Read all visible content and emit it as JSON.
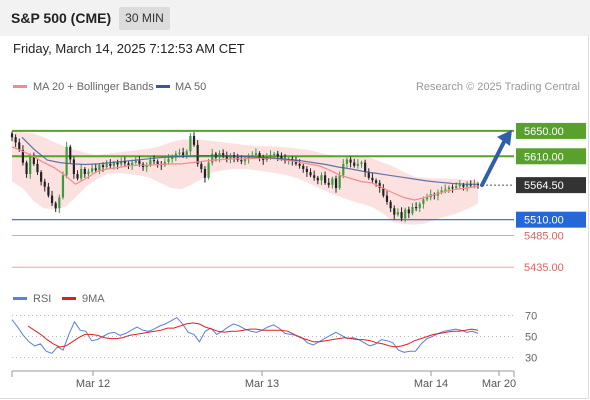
{
  "header": {
    "title": "S&P 500 (CME)",
    "timeframe": "30 MIN",
    "datetime": "Friday, March 14, 2025 7:12:53 AM CET"
  },
  "chart_data": [
    {
      "type": "candlestick",
      "title": "",
      "legend": [
        {
          "name": "MA 20 + Bollinger Bands",
          "color": "#f28b8b"
        },
        {
          "name": "MA 50",
          "color": "#3b5998"
        }
      ],
      "source": "Research © 2025 Trading Central",
      "x_ticks": [
        "Mar 12",
        "Mar 13",
        "Mar 14",
        "Mar 20"
      ],
      "ylim": [
        5418,
        5683
      ],
      "last_price": 5564.5,
      "levels": [
        {
          "label": "5650.00",
          "value": 5650,
          "type": "resistance",
          "color": "#5aa02c"
        },
        {
          "label": "5610.00",
          "value": 5610,
          "type": "resistance",
          "color": "#5aa02c"
        },
        {
          "label": "5564.50",
          "value": 5564.5,
          "type": "last",
          "color": "#333333"
        },
        {
          "label": "5510.00",
          "value": 5510,
          "type": "pivot",
          "color": "#2566d8"
        },
        {
          "label": "5485.00",
          "value": 5485,
          "type": "support",
          "color": "#e06060"
        },
        {
          "label": "5435.00",
          "value": 5435,
          "type": "support",
          "color": "#e06060"
        }
      ],
      "projection": {
        "from": 5564.5,
        "to": 5650
      },
      "closes": [
        5640,
        5632,
        5620,
        5600,
        5582,
        5610,
        5598,
        5585,
        5570,
        5562,
        5548,
        5536,
        5528,
        5545,
        5580,
        5625,
        5605,
        5582,
        5575,
        5590,
        5582,
        5586,
        5591,
        5588,
        5596,
        5593,
        5598,
        5595,
        5600,
        5597,
        5602,
        5599,
        5596,
        5600,
        5603,
        5598,
        5593,
        5596,
        5604,
        5602,
        5598,
        5596,
        5601,
        5606,
        5610,
        5614,
        5616,
        5612,
        5618,
        5642,
        5628,
        5598,
        5590,
        5576,
        5600,
        5614,
        5608,
        5615,
        5610,
        5605,
        5612,
        5608,
        5604,
        5602,
        5606,
        5610,
        5612,
        5615,
        5608,
        5604,
        5609,
        5612,
        5614,
        5610,
        5606,
        5603,
        5606,
        5603,
        5598,
        5595,
        5590,
        5585,
        5580,
        5576,
        5572,
        5580,
        5568,
        5565,
        5575,
        5560,
        5580,
        5598,
        5605,
        5600,
        5595,
        5598,
        5600,
        5585,
        5576,
        5572,
        5568,
        5560,
        5548,
        5538,
        5528,
        5518,
        5522,
        5512,
        5526,
        5520,
        5530,
        5528,
        5535,
        5542,
        5545,
        5550,
        5548,
        5553,
        5556,
        5558,
        5561,
        5560,
        5563,
        5565,
        5562,
        5566,
        5564,
        5566,
        5564.5
      ],
      "ma20": [
        5625,
        5618,
        5610,
        5600,
        5592,
        5580,
        5566,
        5575,
        5586,
        5590,
        5592,
        5595,
        5596,
        5596,
        5597,
        5598,
        5598,
        5600,
        5602,
        5604,
        5605,
        5606,
        5606,
        5607,
        5607,
        5606,
        5604,
        5601,
        5598,
        5595,
        5588,
        5580,
        5575,
        5570,
        5568,
        5560,
        5552,
        5545,
        5541,
        5545,
        5550,
        5555,
        5558,
        5560,
        5563
      ],
      "ma50": [
        5640,
        5620,
        5604,
        5600,
        5598,
        5597,
        5598,
        5600,
        5602,
        5604,
        5606,
        5608,
        5609,
        5610,
        5611,
        5611,
        5611,
        5610,
        5609,
        5608,
        5607,
        5605,
        5603,
        5600,
        5597,
        5593,
        5590,
        5586,
        5583,
        5580,
        5577,
        5574,
        5571,
        5569,
        5567,
        5566,
        5566
      ],
      "bb_upper": [
        5650,
        5648,
        5646,
        5640,
        5632,
        5625,
        5620,
        5615,
        5612,
        5614,
        5616,
        5618,
        5620,
        5622,
        5626,
        5632,
        5636,
        5637,
        5636,
        5634,
        5632,
        5630,
        5628,
        5626,
        5626,
        5625,
        5624,
        5622,
        5620,
        5616,
        5612,
        5610,
        5612,
        5610,
        5607,
        5600,
        5594,
        5585,
        5578,
        5576,
        5575,
        5575,
        5574,
        5573,
        5572
      ],
      "bb_lower": [
        5570,
        5560,
        5540,
        5528,
        5526,
        5530,
        5545,
        5562,
        5574,
        5582,
        5584,
        5582,
        5580,
        5576,
        5568,
        5560,
        5558,
        5566,
        5575,
        5585,
        5588,
        5590,
        5590,
        5588,
        5586,
        5583,
        5580,
        5575,
        5568,
        5560,
        5552,
        5546,
        5540,
        5535,
        5530,
        5520,
        5506,
        5503,
        5502,
        5504,
        5510,
        5515,
        5520,
        5527,
        5535
      ]
    },
    {
      "type": "line",
      "title": "",
      "legend": [
        {
          "name": "RSI",
          "color": "#5b7fe0"
        },
        {
          "name": "9MA",
          "color": "#e02020"
        }
      ],
      "ylim": [
        20,
        80
      ],
      "y_ticks": [
        70,
        50,
        30
      ],
      "rsi": [
        66,
        59,
        51,
        45,
        41,
        43,
        36,
        34,
        40,
        37,
        52,
        64,
        56,
        55,
        46,
        47,
        50,
        53,
        54,
        51,
        53,
        56,
        59,
        56,
        55,
        57,
        60,
        62,
        65,
        68,
        62,
        54,
        52,
        45,
        55,
        58,
        52,
        55,
        59,
        62,
        60,
        57,
        55,
        54,
        56,
        59,
        61,
        58,
        53,
        52,
        51,
        49,
        44,
        42,
        45,
        48,
        51,
        54,
        51,
        48,
        49,
        47,
        44,
        41,
        43,
        47,
        46,
        44,
        37,
        35,
        36,
        36,
        43,
        48,
        50,
        53,
        55,
        56,
        57,
        56,
        54,
        55,
        53
      ],
      "ma9": [
        60,
        56,
        52,
        47,
        43,
        40,
        41,
        45,
        49,
        52,
        52,
        51,
        49,
        48,
        48,
        49,
        51,
        52,
        53,
        54,
        55,
        56,
        58,
        58,
        60,
        62,
        63,
        62,
        59,
        57,
        55,
        54,
        55,
        55,
        56,
        57,
        57,
        56,
        56,
        56,
        56,
        55,
        52,
        49,
        47,
        45,
        45,
        46,
        47,
        48,
        49,
        48,
        47,
        47,
        46,
        44,
        43,
        41,
        40,
        41,
        43,
        46,
        48,
        50,
        52,
        53,
        54,
        55,
        55,
        56,
        57,
        56
      ]
    }
  ]
}
